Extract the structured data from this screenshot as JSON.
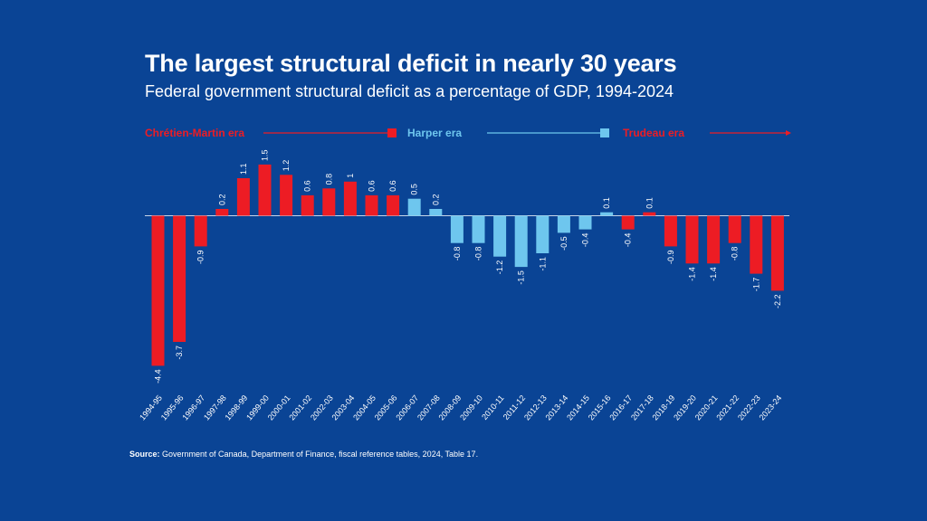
{
  "title": "The largest structural deficit in nearly 30 years",
  "subtitle": "Federal government structural deficit as a percentage of GDP, 1994-2024",
  "source": {
    "label": "Source:",
    "text": "Government of Canada, Department of Finance, fiscal reference tables, 2024, Table 17."
  },
  "colors": {
    "background": "#0a4495",
    "chretien_martin": "#ed1c24",
    "harper": "#6ec6ee",
    "trudeau": "#ed1c24",
    "zero_line": "#c9d6e8"
  },
  "eras": [
    {
      "label": "Chrétien-Martin era",
      "color": "#ed1c24"
    },
    {
      "label": "Harper era",
      "color": "#6ec6ee"
    },
    {
      "label": "Trudeau era",
      "color": "#ed1c24"
    }
  ],
  "chart_data": {
    "type": "bar",
    "title": "The largest structural deficit in nearly 30 years",
    "subtitle": "Federal government structural deficit as a percentage of GDP, 1994-2024",
    "xlabel": "",
    "ylabel": "",
    "ylim": [
      -4.4,
      1.5
    ],
    "grid": false,
    "categories": [
      "1994-95",
      "1995-96",
      "1996-97",
      "1997-98",
      "1998-99",
      "1999-00",
      "2000-01",
      "2001-02",
      "2002-03",
      "2003-04",
      "2004-05",
      "2005-06",
      "2006-07",
      "2007-08",
      "2008-09",
      "2009-10",
      "2010-11",
      "2011-12",
      "2012-13",
      "2013-14",
      "2014-15",
      "2015-16",
      "2016-17",
      "2017-18",
      "2018-19",
      "2019-20",
      "2020-21",
      "2021-22",
      "2022-23",
      "2023-24"
    ],
    "values": [
      -4.4,
      -3.7,
      -0.9,
      0.2,
      1.1,
      1.5,
      1.2,
      0.6,
      0.8,
      1,
      0.6,
      0.6,
      0.5,
      0.2,
      -0.8,
      -0.8,
      -1.2,
      -1.5,
      -1.1,
      -0.5,
      -0.4,
      0.1,
      -0.4,
      0.1,
      -0.9,
      -1.4,
      -1.4,
      -0.8,
      -1.7,
      -2.2
    ],
    "labels": [
      "-4.4",
      "-3.7",
      "-0.9",
      "0.2",
      "1.1",
      "1.5",
      "1.2",
      "0.6",
      "0.8",
      "1",
      "0.6",
      "0.6",
      "0.5",
      "0.2",
      "-0.8",
      "-0.8",
      "-1.2",
      "-1.5",
      "-1.1",
      "-0.5",
      "-0.4",
      "0.1",
      "-0.4",
      "0.1",
      "-0.9",
      "-1.4",
      "-1.4",
      "-0.8",
      "-1.7",
      "-2.2"
    ],
    "era": [
      "chretien_martin",
      "chretien_martin",
      "chretien_martin",
      "chretien_martin",
      "chretien_martin",
      "chretien_martin",
      "chretien_martin",
      "chretien_martin",
      "chretien_martin",
      "chretien_martin",
      "chretien_martin",
      "chretien_martin",
      "harper",
      "harper",
      "harper",
      "harper",
      "harper",
      "harper",
      "harper",
      "harper",
      "harper",
      "harper",
      "trudeau",
      "trudeau",
      "trudeau",
      "trudeau",
      "trudeau",
      "trudeau",
      "trudeau",
      "trudeau"
    ]
  }
}
